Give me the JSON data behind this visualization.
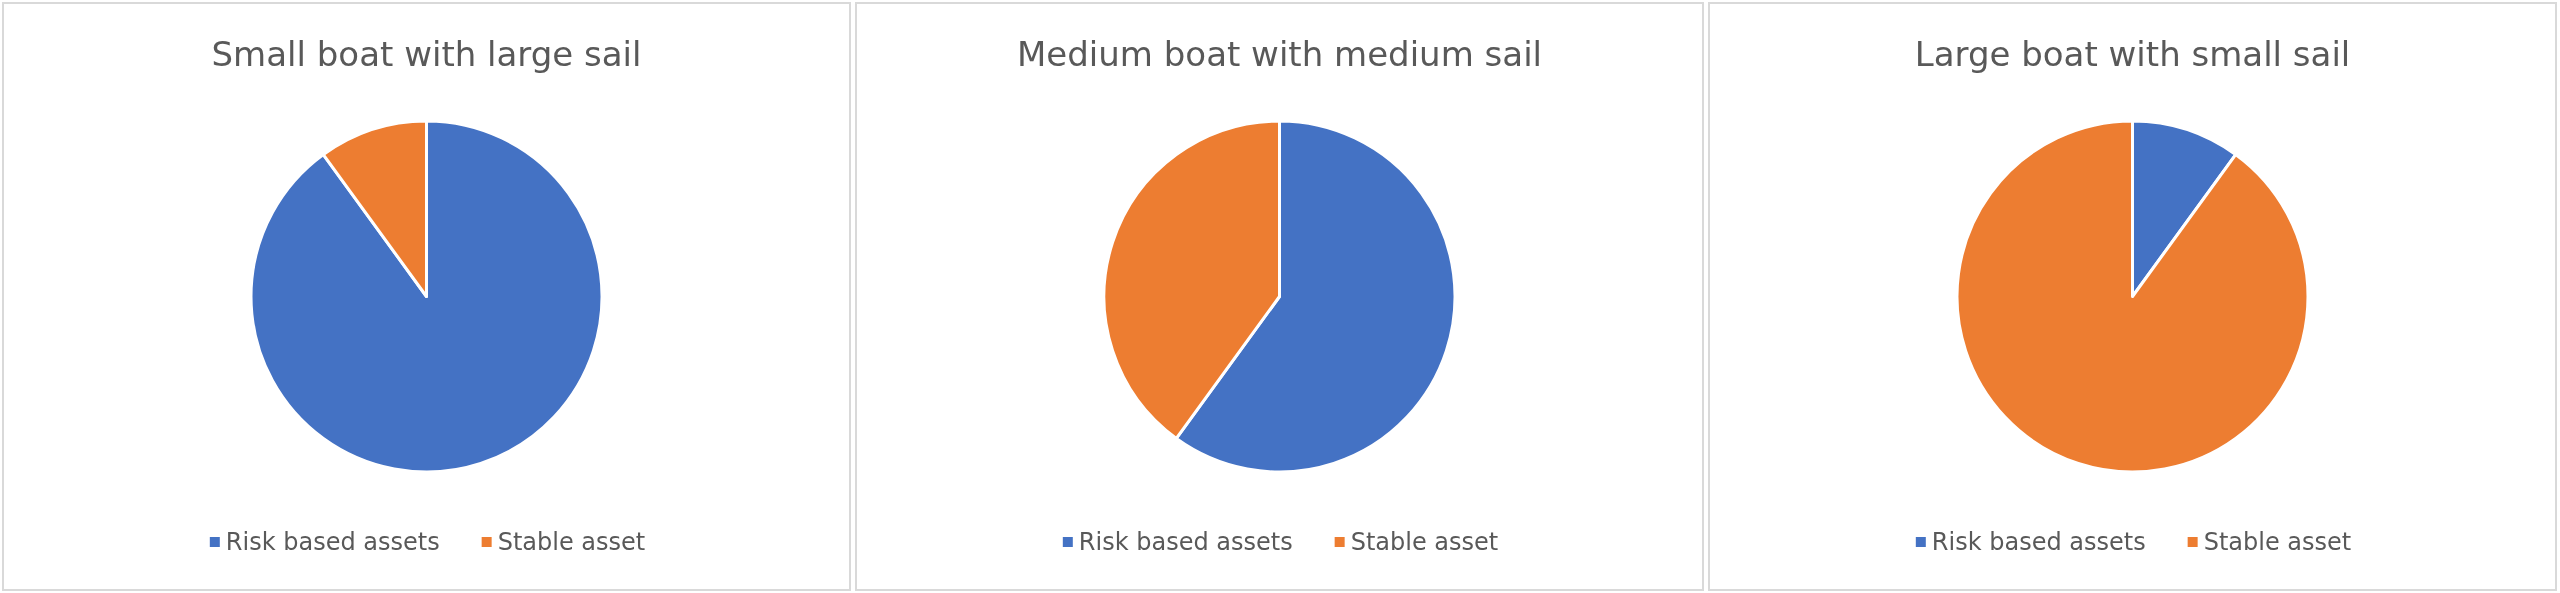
{
  "chart_data": [
    {
      "type": "pie",
      "title": "Small boat with large sail",
      "categories": [
        "Risk based assets",
        "Stable asset"
      ],
      "values": [
        90,
        10
      ],
      "colors": [
        "#4472c4",
        "#ed7d31"
      ],
      "legend": "bottom"
    },
    {
      "type": "pie",
      "title": "Medium boat with medium sail",
      "categories": [
        "Risk based assets",
        "Stable asset"
      ],
      "values": [
        60,
        40
      ],
      "colors": [
        "#4472c4",
        "#ed7d31"
      ],
      "legend": "bottom"
    },
    {
      "type": "pie",
      "title": "Large boat with small sail",
      "categories": [
        "Risk based assets",
        "Stable asset"
      ],
      "values": [
        10,
        90
      ],
      "colors": [
        "#4472c4",
        "#ed7d31"
      ],
      "legend": "bottom"
    }
  ]
}
